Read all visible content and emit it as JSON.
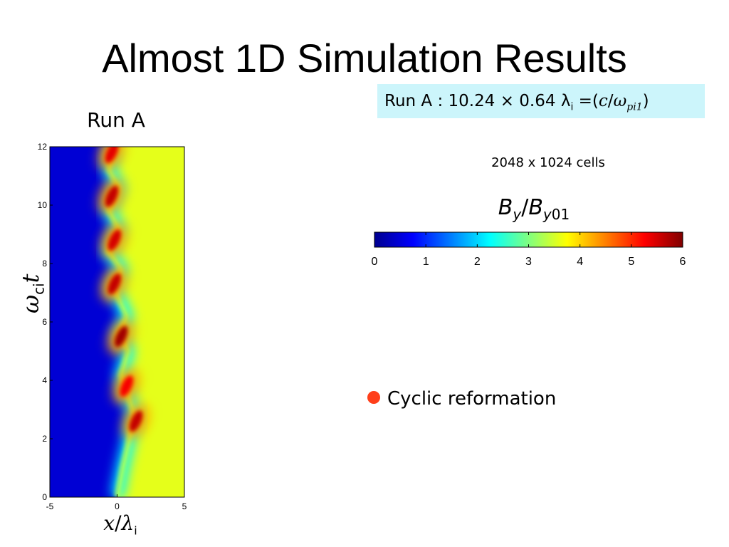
{
  "slide": {
    "title": "Almost 1D Simulation Results",
    "run_box": {
      "prefix": "Run A : 10.24",
      "times": "×",
      "size": "0.64",
      "lambda": "λ",
      "lambda_sub": "i",
      "eq": "=(",
      "c": "c",
      "slash": "/",
      "omega": "ω",
      "omega_sub": "pi1",
      "close": ")"
    },
    "cells_text": "2048 x 1024 cells",
    "bullet": "Cyclic reformation",
    "bullet_color": "#ff3f1a",
    "run_box_color": "#ccf5fb"
  },
  "chart_data": {
    "type": "heatmap",
    "title": "Run A",
    "xlabel": {
      "var": "x",
      "slash": "/",
      "sym": "λ",
      "sub": "i"
    },
    "ylabel": {
      "sym": "ω",
      "sub": "ci",
      "var": "t"
    },
    "xlim": [
      -5,
      5
    ],
    "ylim": [
      0,
      12
    ],
    "xticks": [
      "-5",
      "0",
      "5"
    ],
    "yticks": [
      "0",
      "2",
      "4",
      "6",
      "8",
      "10",
      "12"
    ],
    "colorbar": {
      "label": {
        "b": "B",
        "sub1": "y",
        "slash": "/",
        "b2": "B",
        "sub2": "y",
        "sub3": "01"
      },
      "range": [
        0,
        6
      ],
      "ticks": [
        "0",
        "1",
        "2",
        "3",
        "4",
        "5",
        "6"
      ],
      "colormap": "jet"
    },
    "downstream_value": 3.6,
    "upstream_value": 0.5,
    "shock_front": [
      {
        "t": 0.0,
        "x": 0.0
      },
      {
        "t": 1.0,
        "x": 0.4
      },
      {
        "t": 2.0,
        "x": 0.9
      },
      {
        "t": 2.8,
        "x": 1.3
      },
      {
        "t": 3.6,
        "x": 0.7
      },
      {
        "t": 4.2,
        "x": 0.3
      },
      {
        "t": 5.0,
        "x": 0.8
      },
      {
        "t": 5.6,
        "x": 0.2
      },
      {
        "t": 6.2,
        "x": 0.7
      },
      {
        "t": 7.2,
        "x": -0.3
      },
      {
        "t": 7.8,
        "x": 0.3
      },
      {
        "t": 8.4,
        "x": -0.6
      },
      {
        "t": 9.2,
        "x": 0.1
      },
      {
        "t": 9.8,
        "x": -0.6
      },
      {
        "t": 10.6,
        "x": 0.1
      },
      {
        "t": 11.2,
        "x": -0.6
      },
      {
        "t": 12.0,
        "x": -0.3
      }
    ],
    "peaks": [
      {
        "t": 2.6,
        "x": 1.4,
        "value": 5.6
      },
      {
        "t": 3.8,
        "x": 0.7,
        "value": 5.3
      },
      {
        "t": 5.5,
        "x": 0.3,
        "value": 5.8
      },
      {
        "t": 7.3,
        "x": -0.2,
        "value": 5.6
      },
      {
        "t": 8.8,
        "x": -0.2,
        "value": 5.5
      },
      {
        "t": 10.3,
        "x": -0.4,
        "value": 5.6
      },
      {
        "t": 11.8,
        "x": -0.4,
        "value": 5.4
      }
    ]
  }
}
